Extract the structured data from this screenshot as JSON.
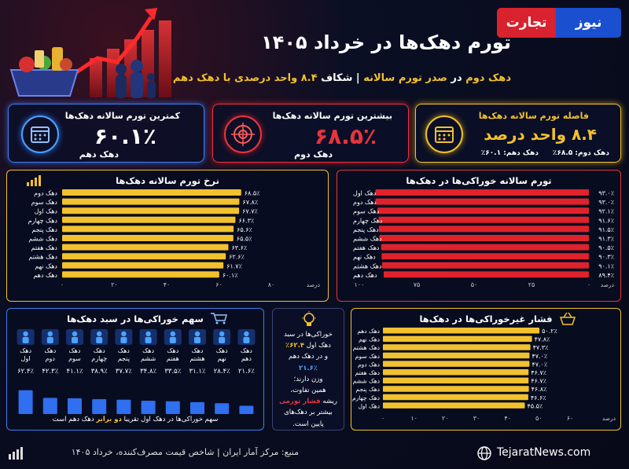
{
  "header": {
    "logo_part1": "تجارت",
    "logo_part2": "نیوز",
    "title": "تورم دهک‌ها در خرداد ۱۴۰۵",
    "subtitle_a": "دهک دوم",
    "subtitle_b": "در",
    "subtitle_c": "صدر تورم سالانه",
    "subtitle_d": "| شکاف",
    "subtitle_e": "۸.۴ واحد",
    "subtitle_f": "درصدی با دهک دهم"
  },
  "kpis": {
    "min": {
      "title": "کمترین تورم سالانه دهک‌ها",
      "value": "۶۰.۱٪",
      "sub": "دهک دهم",
      "color": "#4aa3ff"
    },
    "max": {
      "title": "بیشترین تورم سالانه دهک‌ها",
      "value": "۶۸.۵٪",
      "sub": "دهک دوم",
      "color": "#e8343e"
    },
    "gap": {
      "title": "فاصله تورم سالانه دهک‌ها",
      "value": "۸.۴ واحد درصد",
      "sub1": "دهک دوم: ۶۸.۵٪",
      "sub2": "دهک دهم: ۶۰.۱٪",
      "color": "#f2c12e"
    }
  },
  "annual_unit": "درصد",
  "food_unit": "درصد",
  "nonfood_unit": "درصد",
  "basket_note": "سهم خوراکی‌ها در دهک اول تقریبا",
  "basket_note_b": "دو برابر",
  "basket_note_c": "دهک دهم است",
  "note": {
    "p1": "خوراکی‌ها در سبد",
    "p2": "دهک اول",
    "p3": "۶۲.۴٪",
    "p4": "و در دهک دهم",
    "p5": "۲۱.۶٪",
    "p6": "وزن دارند؛",
    "p7": "همین تفاوت،",
    "p8": "ریشه",
    "p9": "فشار تورمی",
    "p10": "بیشتر بر دهک‌های",
    "p11": "پایین است."
  },
  "footer": {
    "source": "منبع: مرکز آمار ایران | شاخص قیمت مصرف‌کننده، خرداد ۱۴۰۵",
    "site": "TejaratNews.com"
  },
  "chart_data": [
    {
      "type": "bar",
      "title": "نرخ تورم سالانه دهک‌ها",
      "categories": [
        "دهک دوم",
        "دهک سوم",
        "دهک اول",
        "دهک چهارم",
        "دهک پنجم",
        "دهک ششم",
        "دهک هفتم",
        "دهک هشتم",
        "دهک نهم",
        "دهک دهم"
      ],
      "values": [
        68.5,
        67.8,
        67.7,
        66.3,
        65.6,
        65.5,
        63.6,
        62.6,
        61.7,
        60.1
      ],
      "value_labels": [
        "۶۸.۵٪",
        "۶۷.۸٪",
        "۶۷.۷٪",
        "۶۶.۳٪",
        "۶۵.۶٪",
        "۶۵.۵٪",
        "۶۳.۶٪",
        "۶۲.۶٪",
        "۶۱.۷٪",
        "۶۰.۱٪"
      ],
      "xlim": [
        0,
        80
      ],
      "ticks": [
        0,
        20,
        40,
        60,
        80
      ],
      "tick_labels": [
        "۰",
        "۲۰",
        "۴۰",
        "۶۰",
        "۸۰"
      ],
      "color": "#f2c12e"
    },
    {
      "type": "bar",
      "title": "تورم سالانه خوراکی‌ها در دهک‌ها",
      "categories": [
        "دهک اول",
        "دهک دوم",
        "دهک سوم",
        "دهک چهارم",
        "دهک پنجم",
        "دهک ششم",
        "دهک هفتم",
        "دهک نهم",
        "دهک هشتم",
        "دهک دهم"
      ],
      "values": [
        93.0,
        93.0,
        92.1,
        91.6,
        91.5,
        91.3,
        90.5,
        90.3,
        90.1,
        89.4
      ],
      "value_labels": [
        "۹۳.۰٪",
        "۹۳.۰٪",
        "۹۲.۱٪",
        "۹۱.۶٪",
        "۹۱.۵٪",
        "۹۱.۳٪",
        "۹۰.۵٪",
        "۹۰.۳٪",
        "۹۰.۱٪",
        "۸۹.۴٪"
      ],
      "xlim": [
        0,
        100
      ],
      "ticks": [
        0,
        25,
        50,
        75,
        100
      ],
      "tick_labels": [
        "۰",
        "۲۵",
        "۵۰",
        "۷۵",
        "۱۰۰"
      ],
      "color": "#e0222c"
    },
    {
      "type": "bar",
      "orientation": "vertical",
      "title": "سهم خوراکی‌ها در سبد دهک‌ها",
      "categories": [
        "دهک اول",
        "دهک دوم",
        "دهک سوم",
        "دهک چهارم",
        "دهک پنجم",
        "دهک ششم",
        "دهک هفتم",
        "دهک هشتم",
        "دهک نهم",
        "دهک دهم"
      ],
      "values": [
        62.4,
        42.3,
        41.1,
        38.9,
        37.7,
        34.8,
        33.5,
        31.1,
        28.4,
        21.6
      ],
      "value_labels": [
        "۶۲.۴٪",
        "۴۲.۳٪",
        "۴۱.۱٪",
        "۳۸.۹٪",
        "۳۷.۷٪",
        "۳۴.۸٪",
        "۳۳.۵٪",
        "۳۱.۱٪",
        "۲۸.۴٪",
        "۲۱.۶٪"
      ],
      "color": "#2f6ff0"
    },
    {
      "type": "bar",
      "title": "فشار غیرخوراکی‌ها در دهک‌ها",
      "categories": [
        "دهک دهم",
        "دهک نهم",
        "دهک هشتم",
        "دهک سوم",
        "دهک دوم",
        "دهک هفتم",
        "دهک ششم",
        "دهک پنجم",
        "دهک چهارم",
        "دهک اول"
      ],
      "values": [
        50.2,
        47.8,
        47.3,
        47.0,
        47.0,
        46.7,
        46.7,
        46.8,
        46.6,
        45.5
      ],
      "value_labels": [
        "۵۰.۲٪",
        "۴۷.۸٪",
        "۴۷.۳٪",
        "۴۷.۰٪",
        "۴۷.۰٪",
        "۴۶.۷٪",
        "۴۶.۷٪",
        "۴۶.۸٪",
        "۴۶.۶٪",
        "۴۵.۵٪"
      ],
      "xlim": [
        0,
        60
      ],
      "ticks": [
        0,
        10,
        20,
        30,
        40,
        50,
        60
      ],
      "tick_labels": [
        "۰",
        "۱۰",
        "۲۰",
        "۳۰",
        "۴۰",
        "۵۰",
        "۶۰"
      ],
      "color": "#f2c12e"
    }
  ]
}
